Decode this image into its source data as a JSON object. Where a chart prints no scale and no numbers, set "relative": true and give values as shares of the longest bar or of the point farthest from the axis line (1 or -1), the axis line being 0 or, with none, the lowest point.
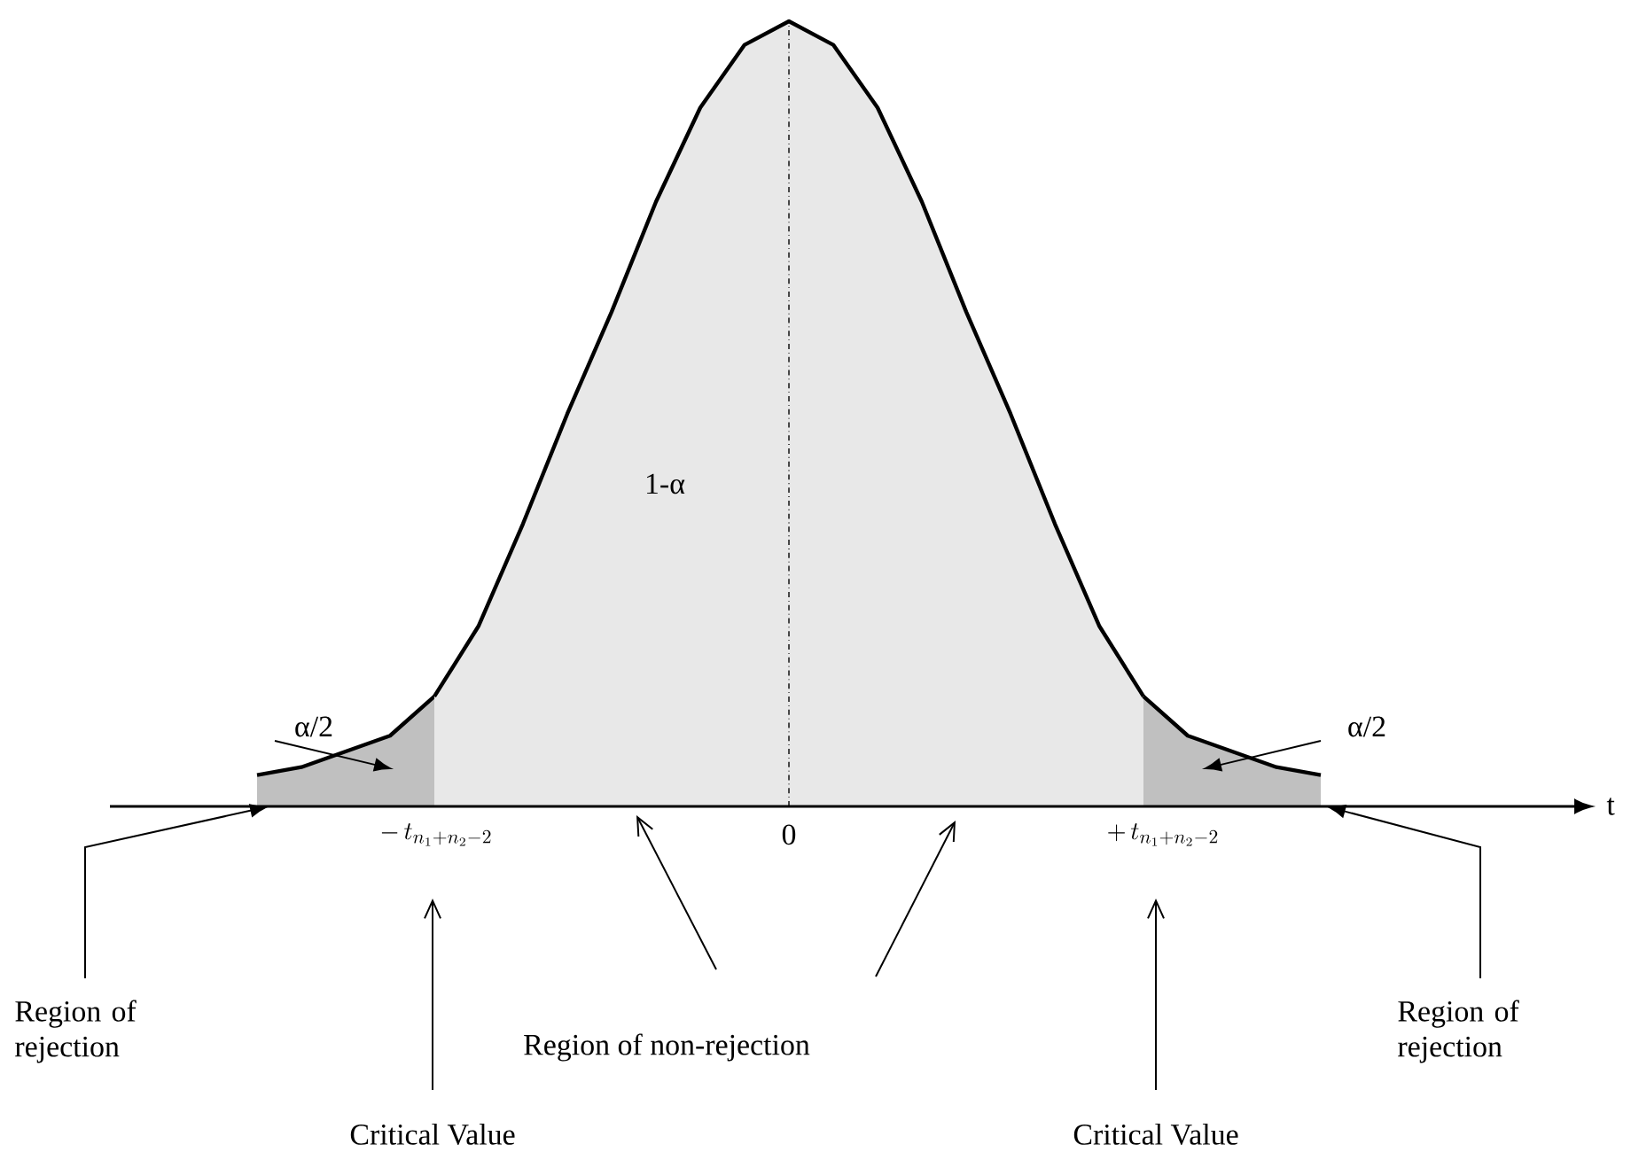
{
  "chart_data": {
    "type": "area",
    "relative": true,
    "categories": [
      null,
      null,
      null,
      null,
      null,
      null,
      null,
      null,
      null,
      null,
      null,
      null,
      null,
      null,
      null,
      null,
      null,
      null,
      null,
      null,
      null,
      null,
      null,
      null,
      null
    ],
    "series": [
      {
        "color": "#c0c0c0",
        "values": [
          0.04,
          0.05,
          0.07,
          0.09,
          0.14,
          null,
          null,
          null,
          null,
          null,
          null,
          null,
          null,
          null,
          null,
          null,
          null,
          null,
          null,
          null,
          null,
          null,
          null,
          null,
          null
        ]
      },
      {
        "color": "#e8e8e8",
        "values": [
          null,
          null,
          null,
          null,
          0.14,
          0.23,
          0.36,
          0.5,
          0.63,
          0.77,
          0.89,
          0.97,
          1,
          0.97,
          0.89,
          0.77,
          0.63,
          0.5,
          0.36,
          0.23,
          0.14,
          null,
          null,
          null,
          null
        ]
      },
      {
        "color": "#c0c0c0",
        "values": [
          null,
          null,
          null,
          null,
          null,
          null,
          null,
          null,
          null,
          null,
          null,
          null,
          null,
          null,
          null,
          null,
          null,
          null,
          null,
          null,
          0.14,
          0.09,
          0.07,
          0.05,
          0.04
        ]
      }
    ],
    "ref_lines": [
      {
        "axis": "x",
        "label": "0",
        "line_style": "dashdotted"
      }
    ],
    "annotations": [
      "1-α",
      "α/2",
      "α/2",
      "Region of rejection",
      "Region of non-rejection",
      "Critical Value",
      "Critical Value",
      "Region of rejection",
      "-\\,t_{n_1+n_2-2}",
      "+\\,t_{n_1+n_2-2}",
      "t"
    ]
  }
}
